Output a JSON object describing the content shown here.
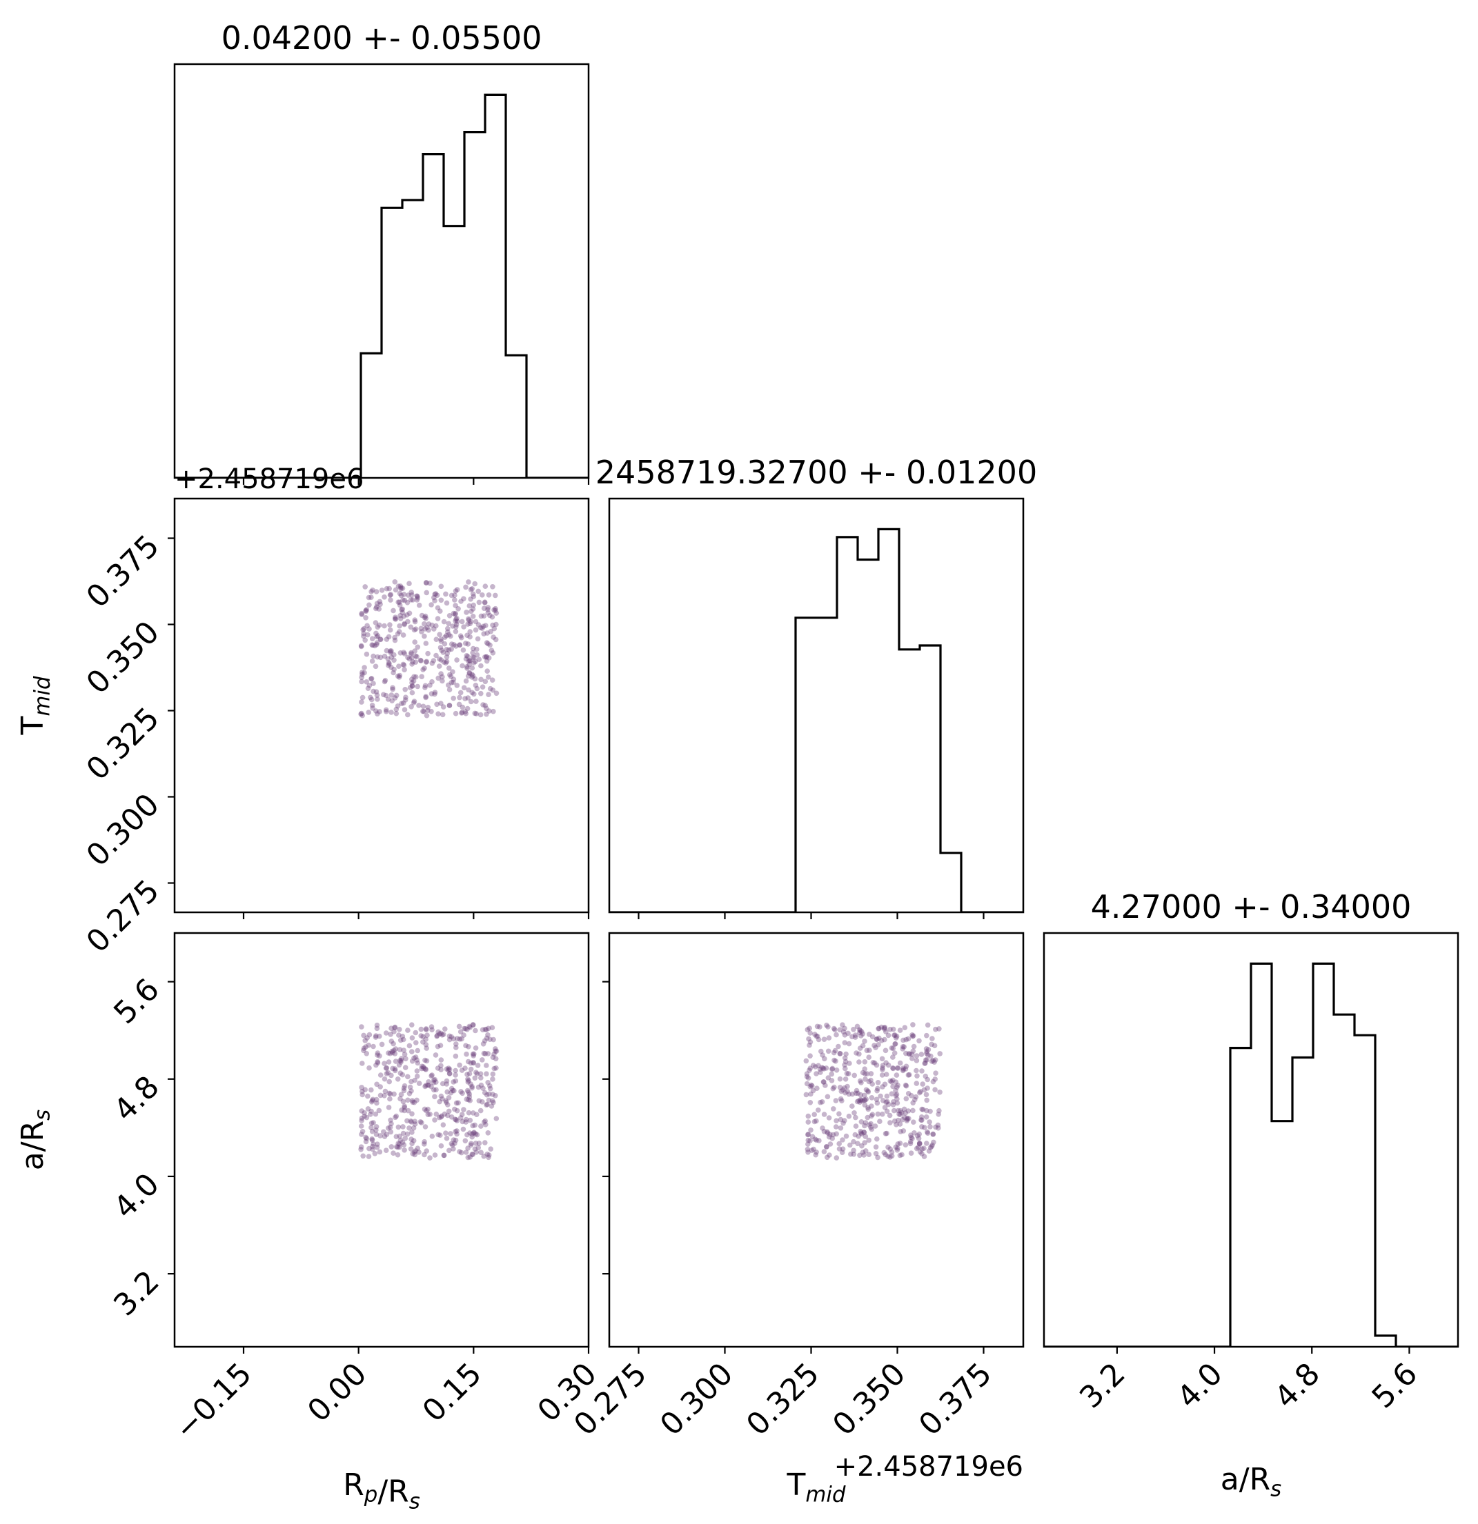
{
  "chart_data": {
    "type": "corner",
    "parameters": [
      {
        "id": "rp",
        "label_main": "R",
        "label_sub": "p",
        "label_rest": "/R",
        "label_sub2": "s"
      },
      {
        "id": "tmid",
        "label_main": "T",
        "label_sub": "mid",
        "label_rest": "",
        "label_sub2": ""
      },
      {
        "id": "ars",
        "label_main": "a/R",
        "label_sub": "s",
        "label_rest": "",
        "label_sub2": ""
      }
    ],
    "titles": [
      "0.04200 +- 0.05500",
      "2458719.32700 +- 0.01200",
      "4.27000 +- 0.34000"
    ],
    "offset_text": "+2.458719e6",
    "axes": {
      "rp": {
        "range": [
          -0.24,
          0.3
        ],
        "ticks": [
          -0.15,
          0.0,
          0.15,
          0.3
        ],
        "tick_labels": [
          "−0.15",
          "0.00",
          "0.15",
          "0.30"
        ]
      },
      "tmid": {
        "range": [
          0.2665,
          0.3865
        ],
        "ticks": [
          0.275,
          0.3,
          0.325,
          0.35,
          0.375
        ],
        "tick_labels": [
          "0.275",
          "0.300",
          "0.325",
          "0.350",
          "0.375"
        ]
      },
      "ars": {
        "range": [
          2.6,
          6.0
        ],
        "ticks": [
          3.2,
          4.0,
          4.8,
          5.6
        ],
        "tick_labels": [
          "3.2",
          "4.0",
          "4.8",
          "5.6"
        ]
      }
    },
    "histograms": {
      "rp": {
        "bin_edges": [
          -0.24,
          -0.213,
          -0.186,
          -0.159,
          -0.132,
          -0.105,
          -0.078,
          -0.051,
          -0.024,
          0.003,
          0.03,
          0.057,
          0.084,
          0.111,
          0.138,
          0.165,
          0.192,
          0.219,
          0.246,
          0.273,
          0.3
        ],
        "counts": [
          0,
          0,
          0,
          0,
          0,
          0,
          0,
          0,
          0,
          13.0,
          28.2,
          29.0,
          33.8,
          26.3,
          36.1,
          40.0,
          12.8,
          0,
          0,
          0
        ]
      },
      "tmid": {
        "bin_edges": [
          0.2665,
          0.2725,
          0.2785,
          0.2845,
          0.2905,
          0.2965,
          0.3025,
          0.3085,
          0.3145,
          0.3205,
          0.3265,
          0.3325,
          0.3385,
          0.3445,
          0.3505,
          0.3565,
          0.3625,
          0.3685,
          0.3745,
          0.3805,
          0.3865
        ],
        "counts": [
          0,
          0,
          0,
          0,
          0,
          0,
          0,
          0,
          0,
          22.3,
          22.3,
          28.4,
          26.7,
          29.0,
          19.9,
          20.2,
          4.5,
          0,
          0,
          0
        ]
      },
      "ars": {
        "bin_edges": [
          2.6,
          2.77,
          2.94,
          3.11,
          3.28,
          3.45,
          3.62,
          3.79,
          3.96,
          4.13,
          4.3,
          4.47,
          4.64,
          4.81,
          4.98,
          5.15,
          5.32,
          5.49,
          5.66,
          5.83,
          6.0
        ],
        "counts": [
          0,
          0,
          0,
          0,
          0,
          0,
          0,
          0,
          0,
          18.8,
          24.1,
          14.2,
          18.2,
          24.1,
          20.9,
          19.6,
          0.7,
          0,
          0,
          0
        ]
      }
    },
    "scatter": {
      "color": "#6a3d7a",
      "point_count": 500,
      "rp_range": [
        0.003,
        0.18
      ],
      "tmid_range": [
        0.3235,
        0.3625
      ],
      "ars_range": [
        4.15,
        5.25
      ]
    },
    "hist_color": "#000000",
    "grid": false
  }
}
